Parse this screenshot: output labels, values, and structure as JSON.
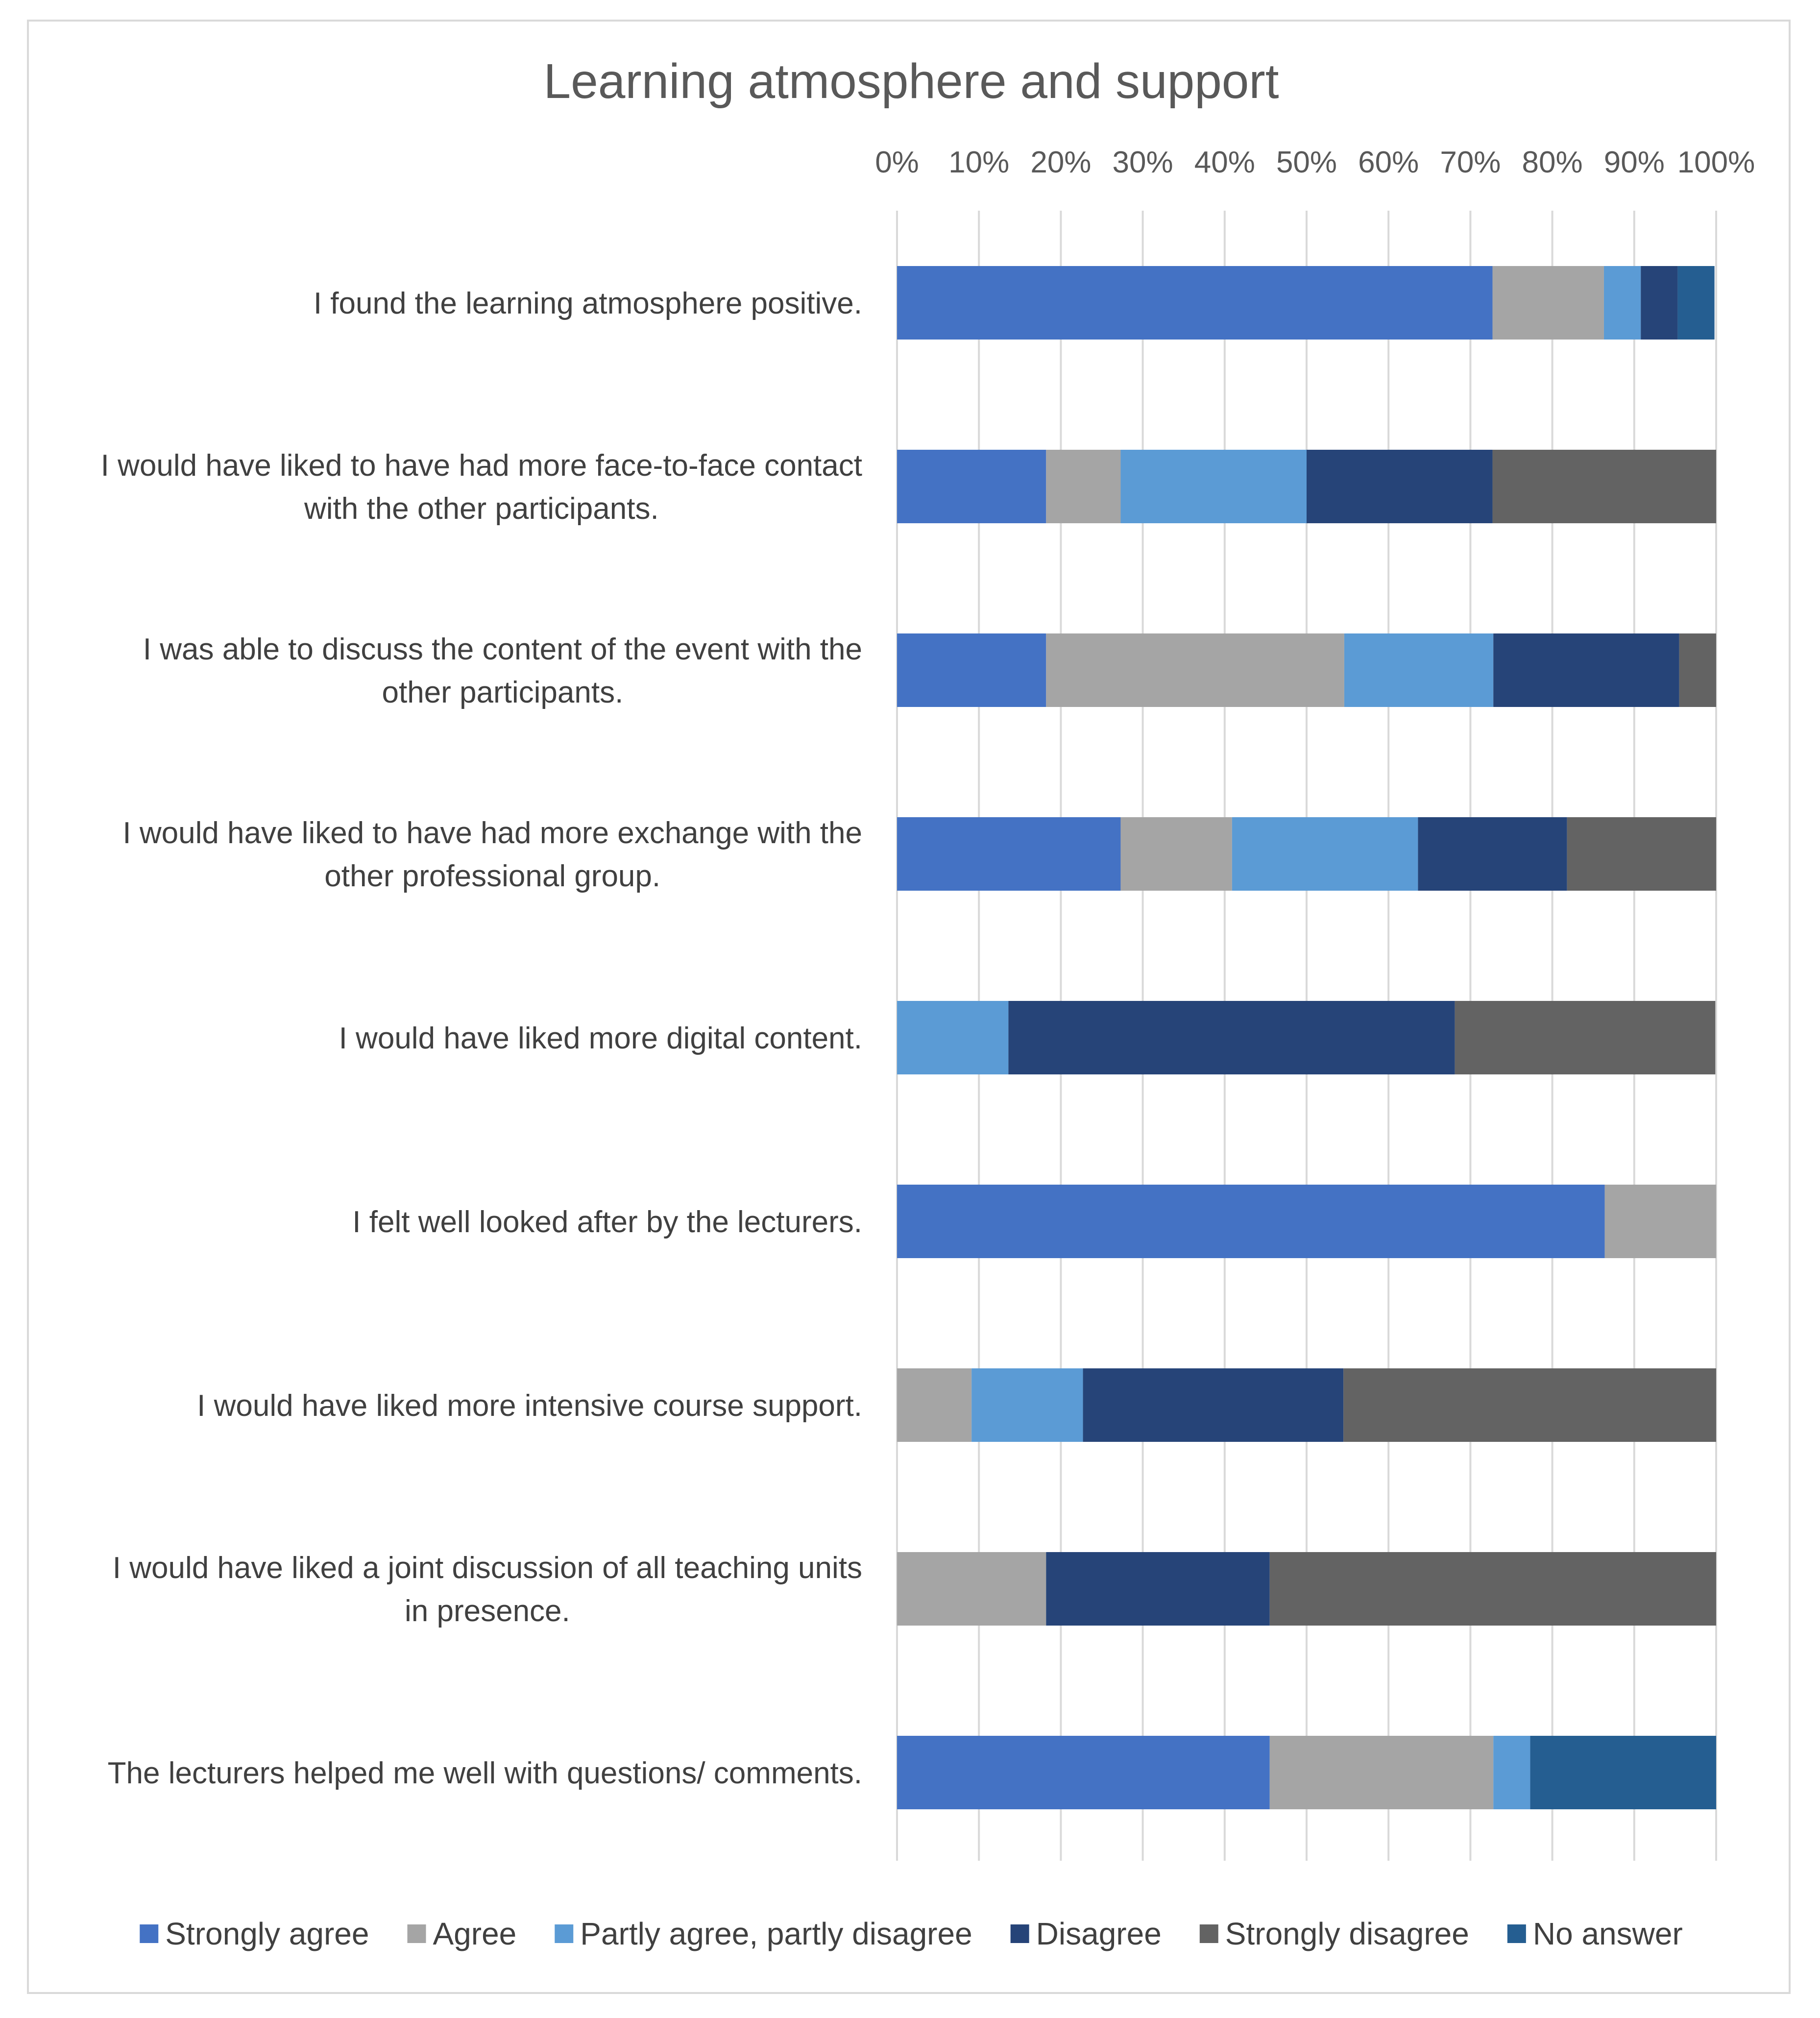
{
  "chart_data": {
    "type": "bar",
    "orientation": "horizontal",
    "stacked": "percent",
    "title": "Learning atmosphere and support",
    "xlabel": "",
    "ylabel": "",
    "xlim": [
      0,
      100
    ],
    "ticks": [
      "0%",
      "10%",
      "20%",
      "30%",
      "40%",
      "50%",
      "60%",
      "70%",
      "80%",
      "90%",
      "100%"
    ],
    "axis_position": "top",
    "grid": true,
    "legend_position": "bottom",
    "categories": [
      [
        "I found the learning atmosphere positive."
      ],
      [
        "I would have liked to have had more face-to-face contact",
        "with the other participants."
      ],
      [
        "I was able to discuss the content of the event with the",
        "other participants."
      ],
      [
        "I would have liked to have had more exchange with the",
        "other professional group."
      ],
      [
        "I would have liked more digital content."
      ],
      [
        "I felt well looked after by the lecturers."
      ],
      [
        "I would have liked more intensive course support."
      ],
      [
        "I would have liked a joint discussion of all teaching units",
        "in presence."
      ],
      [
        "The lecturers helped me well with questions/ comments."
      ]
    ],
    "series": [
      {
        "name": "Strongly agree",
        "color": "#4472c4",
        "values": [
          72.7,
          18.2,
          18.2,
          27.3,
          0,
          86.4,
          0,
          0,
          45.5
        ]
      },
      {
        "name": "Agree",
        "color": "#a5a5a5",
        "values": [
          13.6,
          9.1,
          36.4,
          13.6,
          0,
          13.6,
          9.1,
          18.2,
          27.3
        ]
      },
      {
        "name": "Partly agree, partly disagree",
        "color": "#5b9bd5",
        "values": [
          4.5,
          22.7,
          18.2,
          22.7,
          13.6,
          0,
          13.6,
          0,
          4.5
        ]
      },
      {
        "name": "Disagree",
        "color": "#264478",
        "values": [
          4.5,
          22.7,
          22.7,
          18.2,
          54.5,
          0,
          31.8,
          27.3,
          0
        ]
      },
      {
        "name": "Strongly disagree",
        "color": "#636363",
        "values": [
          0,
          27.3,
          4.5,
          18.2,
          31.8,
          0,
          45.5,
          54.5,
          0
        ]
      },
      {
        "name": "No answer",
        "color": "#255e91",
        "values": [
          4.5,
          0,
          0,
          0,
          0,
          0,
          0,
          0,
          22.7
        ]
      }
    ]
  }
}
